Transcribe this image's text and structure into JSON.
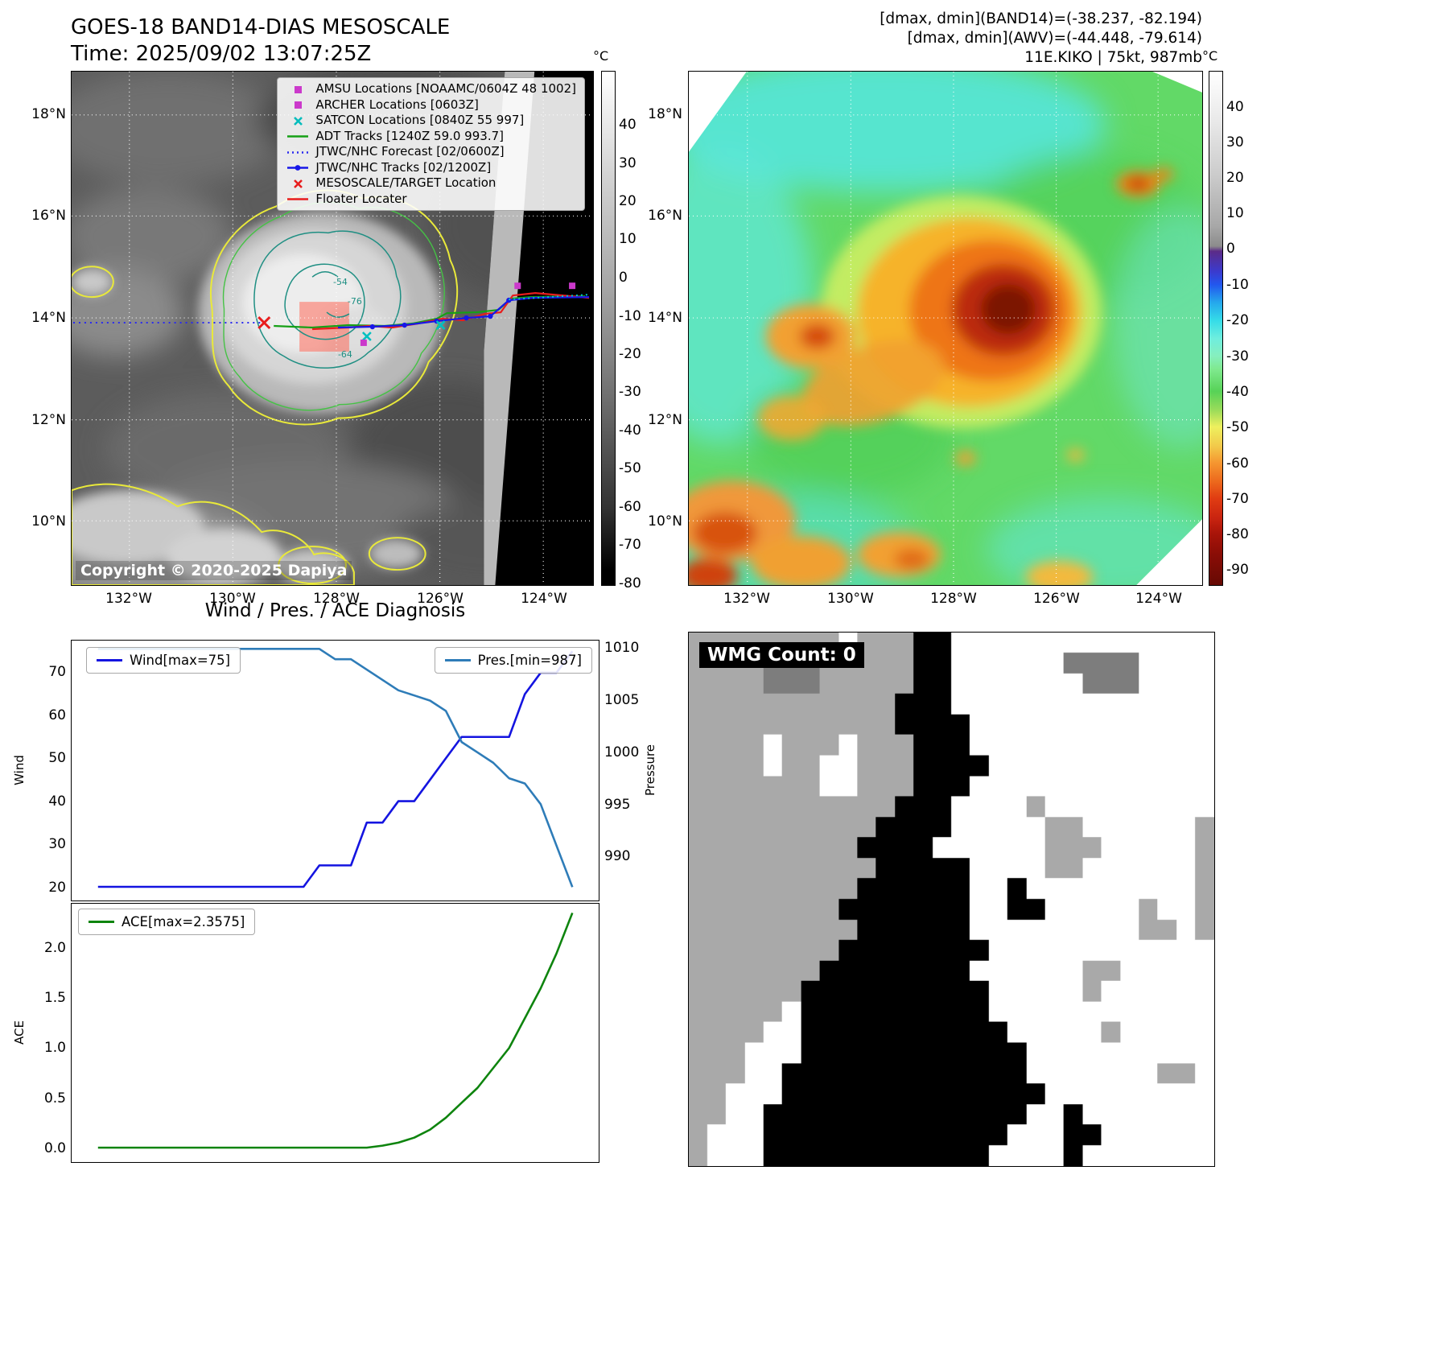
{
  "left_map": {
    "title": "GOES-18 BAND14-DIAS MESOSCALE",
    "subtitle": "Time: 2025/09/02 13:07:25Z",
    "copyright": "Copyright © 2020-2025 Dapiya",
    "colorbar": {
      "unit": "°C",
      "ticks": [
        40,
        30,
        20,
        10,
        0,
        -10,
        -20,
        -30,
        -40,
        -50,
        -60,
        -70,
        -80
      ]
    },
    "lat_ticks": [
      "18°N",
      "16°N",
      "14°N",
      "12°N",
      "10°N"
    ],
    "lon_ticks": [
      "132°W",
      "130°W",
      "128°W",
      "126°W",
      "124°W"
    ],
    "contour_labels": [
      "-54",
      "-76",
      "-64"
    ],
    "legend": [
      {
        "marker": "square",
        "color": "#cb39cb",
        "label": "AMSU Locations [NOAAMC/0604Z 48 1002]"
      },
      {
        "marker": "square",
        "color": "#cb39cb",
        "label": "ARCHER Locations [0603Z]"
      },
      {
        "marker": "x",
        "color": "#00bcbc",
        "label": "SATCON Locations [0840Z 55 997]"
      },
      {
        "marker": "line",
        "color": "#16a016",
        "label": "ADT Tracks [1240Z 59.0 993.7]"
      },
      {
        "marker": "dotted",
        "color": "#2a2af0",
        "label": "JTWC/NHC Forecast [02/0600Z]"
      },
      {
        "marker": "line-dot",
        "color": "#1717e8",
        "label": "JTWC/NHC Tracks [02/1200Z]"
      },
      {
        "marker": "x",
        "color": "#e81d1d",
        "label": "MESOSCALE/TARGET Location"
      },
      {
        "marker": "line",
        "color": "#e81d1d",
        "label": "Floater Locater"
      }
    ]
  },
  "right_map": {
    "header_lines": [
      "[dmax, dmin](BAND14)=(-38.237, -82.194)",
      "[dmax, dmin](AWV)=(-44.448, -79.614)",
      "11E.KIKO | 75kt, 987mb"
    ],
    "colorbar": {
      "unit": "°C",
      "ticks": [
        40,
        30,
        20,
        10,
        0,
        -10,
        -20,
        -30,
        -40,
        -50,
        -60,
        -70,
        -80,
        -90
      ]
    },
    "lat_ticks": [
      "18°N",
      "16°N",
      "14°N",
      "12°N",
      "10°N"
    ],
    "lon_ticks": [
      "132°W",
      "130°W",
      "128°W",
      "126°W",
      "124°W"
    ]
  },
  "chart_data": [
    {
      "type": "line",
      "title": "Wind / Pres. / ACE Diagnosis",
      "x": [
        0,
        1,
        2,
        3,
        4,
        5,
        6,
        7,
        8,
        9,
        10,
        11,
        12,
        13,
        14,
        15,
        16,
        17,
        18,
        19,
        20,
        21,
        22,
        23,
        24,
        25,
        26,
        27,
        28,
        29,
        30
      ],
      "series": [
        {
          "name": "Wind[max=75]",
          "axis": "left",
          "color": "#1414e0",
          "values": [
            20,
            20,
            20,
            20,
            20,
            20,
            20,
            20,
            20,
            20,
            20,
            20,
            20,
            20,
            25,
            25,
            25,
            35,
            35,
            40,
            40,
            45,
            50,
            55,
            55,
            55,
            55,
            65,
            70,
            70,
            75
          ]
        },
        {
          "name": "Pres.[min=987]",
          "axis": "right",
          "color": "#2e7cb8",
          "values": [
            1010,
            1010,
            1010,
            1010,
            1010,
            1010,
            1010,
            1010,
            1010,
            1010,
            1010,
            1010,
            1010,
            1010,
            1010,
            1009,
            1009,
            1008,
            1007,
            1006,
            1005.5,
            1005,
            1004,
            1001,
            1000,
            999,
            997.5,
            997,
            995,
            991,
            987
          ]
        }
      ],
      "ylabel_left": "Wind",
      "ylabel_right": "Pressure",
      "yticks_left": [
        20,
        30,
        40,
        50,
        60,
        70
      ],
      "yticks_right": [
        990,
        995,
        1000,
        1005,
        1010
      ],
      "ylim_left": [
        16.8,
        77.5
      ],
      "ylim_right": [
        985.7,
        1010.8
      ],
      "grid": false,
      "legend_position": "upper-left and upper-right"
    },
    {
      "type": "line",
      "x": [
        0,
        1,
        2,
        3,
        4,
        5,
        6,
        7,
        8,
        9,
        10,
        11,
        12,
        13,
        14,
        15,
        16,
        17,
        18,
        19,
        20,
        21,
        22,
        23,
        24,
        25,
        26,
        27,
        28,
        29,
        30
      ],
      "series": [
        {
          "name": "ACE[max=2.3575]",
          "color": "#0e840e",
          "values": [
            0,
            0,
            0,
            0,
            0,
            0,
            0,
            0,
            0,
            0,
            0,
            0,
            0,
            0,
            0,
            0,
            0,
            0,
            0.02,
            0.05,
            0.1,
            0.18,
            0.3,
            0.45,
            0.6,
            0.8,
            1.0,
            1.3,
            1.6,
            1.95,
            2.3575
          ]
        }
      ],
      "ylabel": "ACE",
      "yticks": [
        0,
        0.5,
        1,
        1.5,
        2
      ],
      "ylim": [
        -0.145,
        2.45
      ],
      "grid": false,
      "legend_position": "upper-left"
    }
  ],
  "wmg": {
    "label": "WMG Count: 0",
    "palette": {
      ".": "#ffffff",
      "a": "#a9a9a9",
      "g": "#7d7d7d",
      "k": "#000000"
    },
    "grid": [
      "aaaaaaaa.aaakk..............",
      "aaaagggaaaaakk......gggg....",
      "aaaagggaaaaakk.......ggg....",
      "aaaaaaaaaaakkk..............",
      "aaaaaaaaaaakkkk.............",
      "aaaa.aaa.aaakkk.............",
      "aaaa.aa..aaakkkk............",
      "aaaaaaa..aaakkk.............",
      "aaaaaaaaaaakkk....a.........",
      "aaaaaaaaaakkkk.....aa......a",
      "aaaaaaaaakkkk......aaa.....a",
      "aaaaaaaaaakkkkk....aa......a",
      "aaaaaaaaakkkkkk..k.........a",
      "aaaaaaaakkkkkkk..kk.....a..a",
      "aaaaaaaaakkkkkk.........aa.a",
      "aaaaaaaakkkkkkkk............",
      "aaaaaaakkkkkkkk......aa.....",
      "aaaaaakkkkkkkkkk.....a......",
      "aaaaa.kkkkkkkkkk............",
      "aaaa..kkkkkkkkkkk.....a.....",
      "aaa...kkkkkkkkkkkk..........",
      "aaa..kkkkkkkkkkkkk.......aa.",
      "aa...kkkkkkkkkkkkkk.........",
      "aa..kkkkkkkkkkkkkk..k.......",
      "a...kkkkkkkkkkkkk...kk......",
      "a...kkkkkkkkkkkk....k......."
    ]
  }
}
